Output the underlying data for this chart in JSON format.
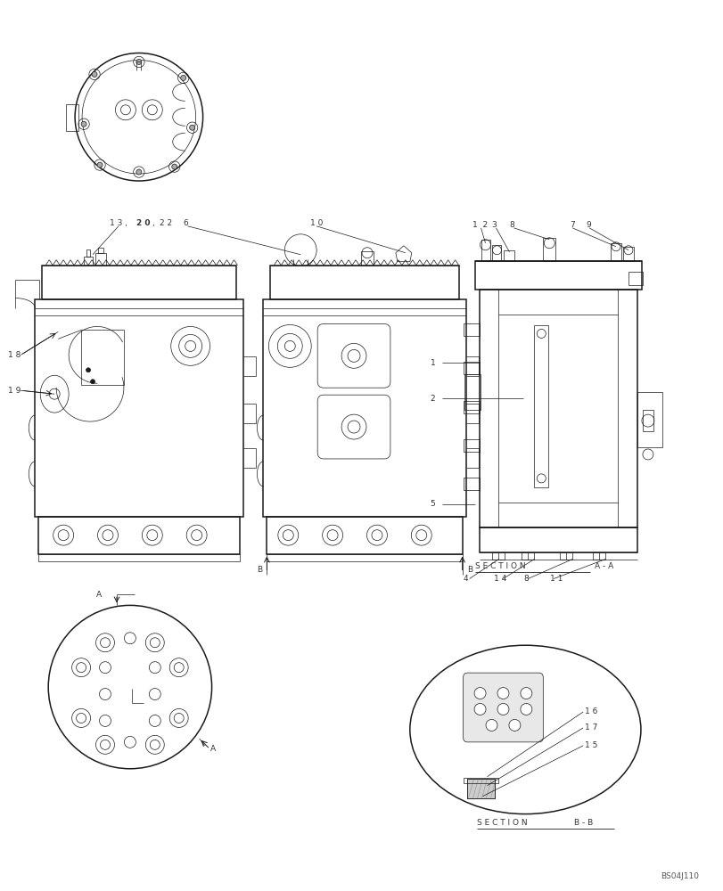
{
  "bg_color": "#ffffff",
  "line_color": "#1a1a1a",
  "label_color": "#333333",
  "figure_width": 8.12,
  "figure_height": 10.0,
  "dpi": 100,
  "watermark": "BS04J110",
  "section_aa_label": "S E C T I O N",
  "section_aa_right": "A - A",
  "section_bb_label": "S E C T I O N",
  "section_bb_right": "B - B"
}
